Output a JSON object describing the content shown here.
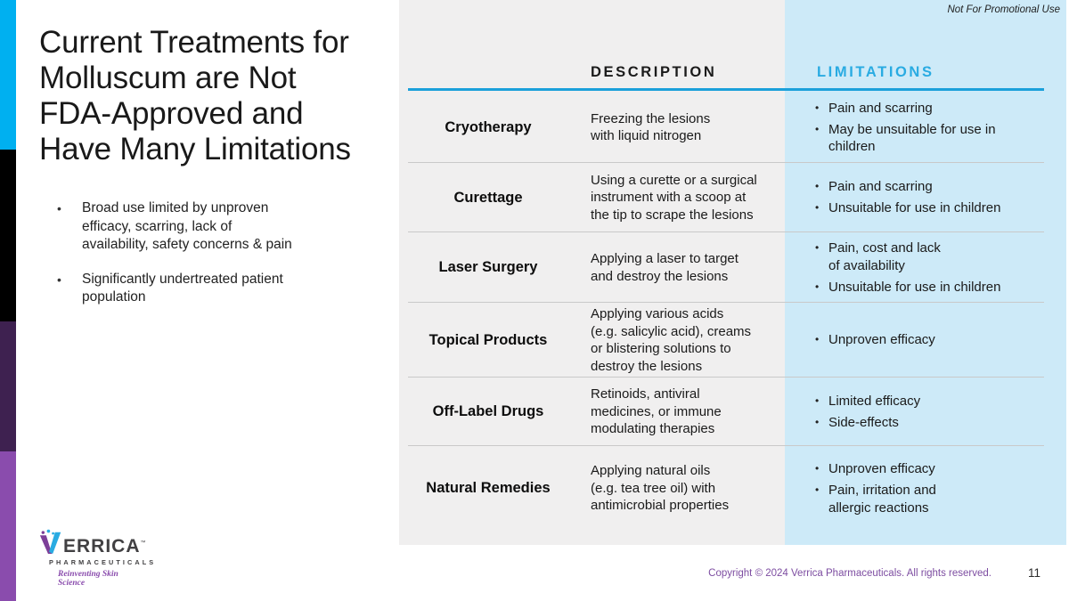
{
  "colors": {
    "accent_cyan": "#29abe2",
    "bar_cyan": "#00b0f0",
    "bar_black": "#000000",
    "bar_dark_purple": "#3e2150",
    "bar_bright_purple": "#8a4cad",
    "panel_gray": "#f0efef",
    "panel_blue": "#cdeaf8",
    "copyright_purple": "#7d4da1",
    "separator": "#c9c9c9"
  },
  "watermark": "Not For Promotional Use",
  "title": "Current Treatments for\nMolluscum are Not\nFDA-Approved and\nHave Many Limitations",
  "bullets": [
    "Broad use limited by unproven\nefficacy, scarring, lack of\navailability, safety concerns & pain",
    "Significantly undertreated patient\npopulation"
  ],
  "table": {
    "description_header": "DESCRIPTION",
    "limitations_header": "LIMITATIONS",
    "rows": [
      {
        "name": "Cryotherapy",
        "description": "Freezing the lesions\nwith liquid nitrogen",
        "limitations": [
          "Pain and scarring",
          "May be unsuitable for use in\nchildren"
        ]
      },
      {
        "name": "Curettage",
        "description": "Using a curette or a surgical\ninstrument with a scoop at\nthe tip to scrape the lesions",
        "limitations": [
          "Pain and scarring",
          "Unsuitable for use in children"
        ]
      },
      {
        "name": "Laser Surgery",
        "description": "Applying a laser to target\nand destroy the lesions",
        "limitations": [
          "Pain, cost and lack\nof availability",
          "Unsuitable for use in children"
        ]
      },
      {
        "name": "Topical Products",
        "description": "Applying various acids\n(e.g. salicylic acid), creams\nor blistering solutions to\ndestroy the lesions",
        "limitations": [
          "Unproven efficacy"
        ]
      },
      {
        "name": "Off-Label Drugs",
        "description": "Retinoids, antiviral\nmedicines, or immune\nmodulating therapies",
        "limitations": [
          "Limited efficacy",
          "Side-effects"
        ]
      },
      {
        "name": "Natural Remedies",
        "description": "Applying natural oils\n(e.g. tea tree oil) with\nantimicrobial properties",
        "limitations": [
          "Unproven efficacy",
          "Pain, irritation and\nallergic reactions"
        ]
      }
    ]
  },
  "footer": {
    "copyright": "Copyright © 2024 Verrica Pharmaceuticals. All rights reserved.",
    "page": "11"
  },
  "logo": {
    "name": "ERRICA",
    "tm": "™",
    "sub": "PHARMACEUTICALS",
    "tagline": "Reinventing Skin Science"
  }
}
